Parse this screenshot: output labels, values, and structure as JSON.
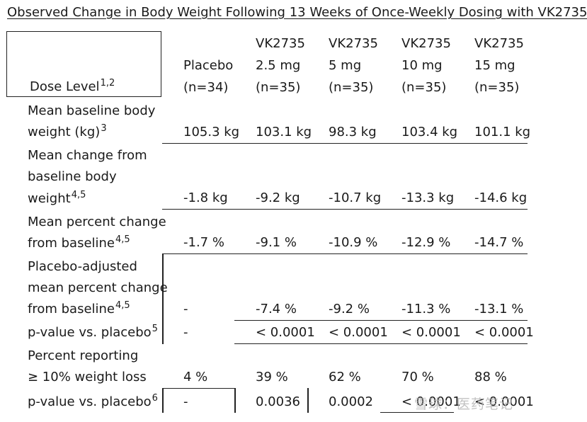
{
  "title": "Observed Change in Body Weight Following 13 Weeks of Once-Weekly Dosing with VK2735",
  "header": {
    "dose_level_label": "Dose Level",
    "dose_level_sup": "1,2",
    "columns": [
      {
        "line1": "",
        "line2": "Placebo",
        "line3": "(n=34)"
      },
      {
        "line1": "VK2735",
        "line2": "2.5 mg",
        "line3": "(n=35)"
      },
      {
        "line1": "VK2735",
        "line2": "5 mg",
        "line3": "(n=35)"
      },
      {
        "line1": "VK2735",
        "line2": "10 mg",
        "line3": "(n=35)"
      },
      {
        "line1": "VK2735",
        "line2": "15 mg",
        "line3": "(n=35)"
      }
    ]
  },
  "rows": {
    "baseline": {
      "line1": "Mean baseline body",
      "line2": "weight (kg)",
      "sup": "3",
      "values": [
        "105.3 kg",
        "103.1 kg",
        "98.3 kg",
        "103.4 kg",
        "101.1 kg"
      ]
    },
    "change": {
      "line1": "Mean change from",
      "line2": "baseline body",
      "line3": "weight",
      "sup": "4,5",
      "values": [
        "-1.8 kg",
        "-9.2 kg",
        "-10.7 kg",
        "-13.3 kg",
        "-14.6 kg"
      ]
    },
    "pct_change": {
      "line1": "Mean percent change",
      "line2": "from baseline",
      "sup": "4,5",
      "values": [
        "-1.7 %",
        "-9.1 %",
        "-10.9 %",
        "-12.9 %",
        "-14.7 %"
      ]
    },
    "placebo_adj": {
      "line1": "Placebo-adjusted",
      "line2": "mean percent change",
      "line3": "from baseline",
      "sup": "4,5",
      "values": [
        "-",
        "-7.4 %",
        "-9.2 %",
        "-11.3 %",
        "-13.1 %"
      ]
    },
    "pvalue1": {
      "line1": "p-value vs. placebo",
      "sup": "5",
      "values": [
        "-",
        "< 0.0001",
        "< 0.0001",
        "< 0.0001",
        "< 0.0001"
      ]
    },
    "weight_loss": {
      "line1": "Percent reporting",
      "line2": "≥ 10% weight loss",
      "values": [
        "4 %",
        "39 %",
        "62 %",
        "70 %",
        "88 %"
      ]
    },
    "pvalue2": {
      "line1": "p-value vs. placebo",
      "sup": "6",
      "values": [
        "-",
        "0.0036",
        "0.0002",
        "< 0.0001",
        "< 0.0001"
      ]
    }
  },
  "watermark": "雪球：医药笔记"
}
